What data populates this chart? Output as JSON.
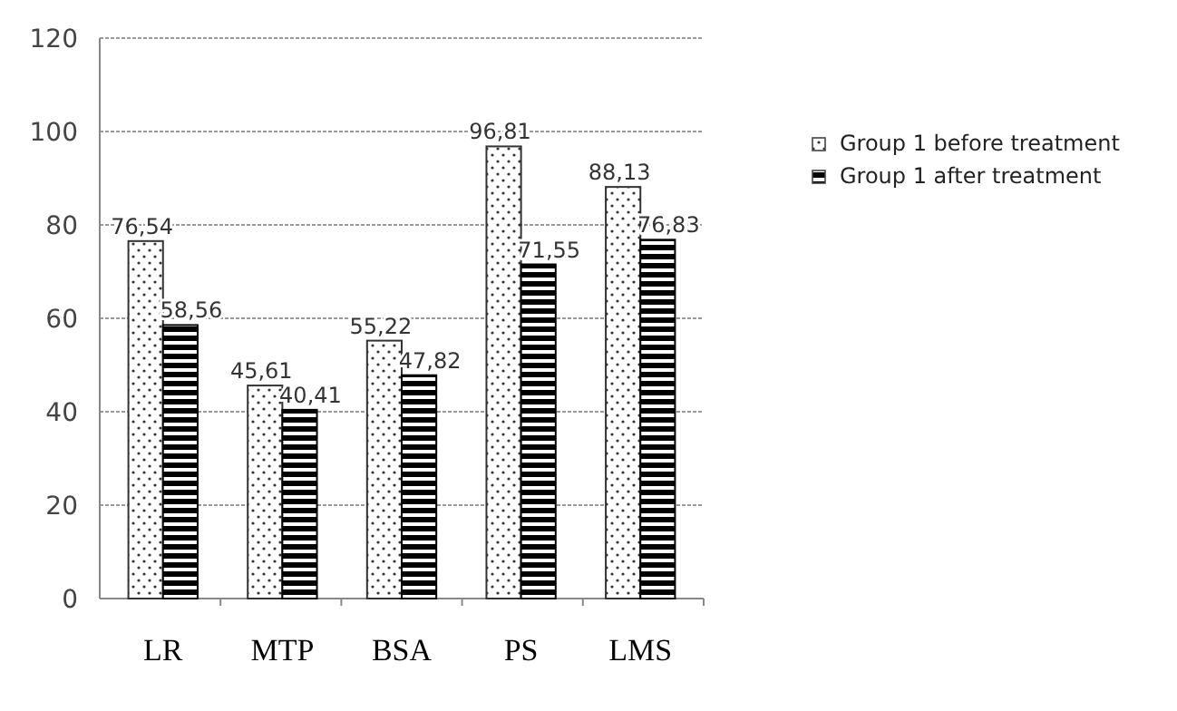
{
  "chart_data": {
    "type": "bar",
    "categories": [
      "LR",
      "MTP",
      "BSA",
      "PS",
      "LMS"
    ],
    "series": [
      {
        "name": "Group 1 before treatment",
        "color": "#333333",
        "values": [
          76.54,
          45.61,
          55.22,
          96.81,
          88.13
        ],
        "value_labels": [
          "76,54",
          "45,61",
          "55,22",
          "96,81",
          "88,13"
        ]
      },
      {
        "name": "Group 1 after treatment",
        "color": "#000000",
        "values": [
          58.56,
          40.41,
          47.82,
          71.55,
          76.83
        ],
        "value_labels": [
          "58,56",
          "40,41",
          "47,82",
          "71,55",
          "76,83"
        ]
      }
    ],
    "ylim": [
      0,
      120
    ],
    "yticks": [
      0,
      20,
      40,
      60,
      80,
      100,
      120
    ],
    "grid": "y",
    "legend": "right"
  }
}
